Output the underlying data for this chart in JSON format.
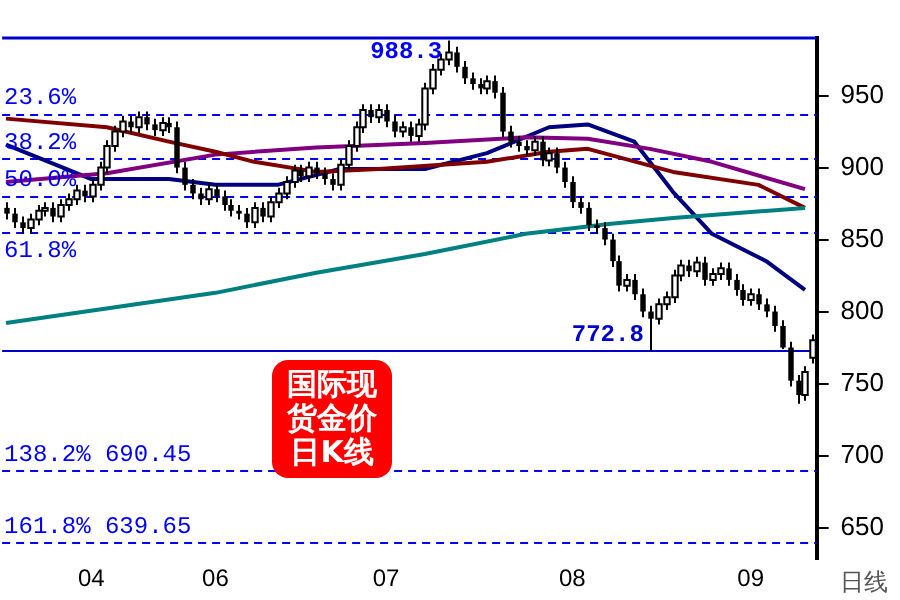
{
  "chart_data": {
    "type": "candlestick",
    "title": "国际现货金价日K线",
    "xlabel": "日线",
    "categories": [
      null,
      null,
      null,
      null,
      null,
      null,
      null,
      null,
      null,
      null,
      null,
      "04",
      null,
      null,
      null,
      null,
      null,
      null,
      null,
      null,
      null,
      null,
      null,
      null,
      null,
      null,
      null,
      "06",
      null,
      null,
      null,
      null,
      null,
      null,
      null,
      null,
      null,
      null,
      null,
      null,
      null,
      null,
      null,
      null,
      null,
      null,
      null,
      null,
      null,
      "07",
      null,
      null,
      null,
      null,
      null,
      null,
      null,
      null,
      null,
      null,
      null,
      null,
      null,
      null,
      null,
      null,
      null,
      null,
      null,
      null,
      null,
      null,
      null,
      "08",
      null,
      null,
      null,
      null,
      null,
      null,
      null,
      null,
      null,
      null,
      null,
      null,
      null,
      null,
      null,
      null,
      null,
      null,
      null,
      null,
      null,
      null,
      "09",
      null,
      null,
      null,
      null,
      null,
      null,
      null,
      null
    ],
    "ohlc": [
      [
        872,
        876,
        864,
        868
      ],
      [
        868,
        872,
        858,
        862
      ],
      [
        862,
        866,
        854,
        858
      ],
      [
        858,
        868,
        854,
        864
      ],
      [
        864,
        874,
        860,
        870
      ],
      [
        870,
        876,
        866,
        872
      ],
      [
        872,
        876,
        862,
        866
      ],
      [
        866,
        878,
        862,
        874
      ],
      [
        874,
        882,
        870,
        878
      ],
      [
        878,
        888,
        874,
        884
      ],
      [
        884,
        888,
        876,
        880
      ],
      [
        880,
        892,
        876,
        888
      ],
      [
        888,
        904,
        884,
        900
      ],
      [
        900,
        919,
        896,
        915
      ],
      [
        915,
        929,
        911,
        925
      ],
      [
        925,
        936,
        921,
        932
      ],
      [
        932,
        936,
        924,
        928
      ],
      [
        928,
        939,
        924,
        935
      ],
      [
        935,
        939,
        926,
        930
      ],
      [
        930,
        934,
        922,
        926
      ],
      [
        926,
        935,
        922,
        931
      ],
      [
        931,
        935,
        924,
        928
      ],
      [
        928,
        932,
        896,
        900
      ],
      [
        900,
        904,
        884,
        888
      ],
      [
        888,
        892,
        878,
        882
      ],
      [
        882,
        886,
        874,
        878
      ],
      [
        878,
        889,
        874,
        885
      ],
      [
        885,
        889,
        876,
        880
      ],
      [
        880,
        884,
        870,
        874
      ],
      [
        874,
        878,
        866,
        870
      ],
      [
        870,
        874,
        864,
        868
      ],
      [
        868,
        872,
        858,
        862
      ],
      [
        862,
        876,
        858,
        872
      ],
      [
        872,
        876,
        862,
        866
      ],
      [
        866,
        880,
        862,
        876
      ],
      [
        876,
        886,
        872,
        882
      ],
      [
        882,
        894,
        878,
        890
      ],
      [
        890,
        902,
        886,
        898
      ],
      [
        898,
        902,
        890,
        894
      ],
      [
        894,
        904,
        890,
        900
      ],
      [
        900,
        904,
        892,
        896
      ],
      [
        896,
        900,
        888,
        892
      ],
      [
        892,
        896,
        884,
        888
      ],
      [
        888,
        906,
        884,
        902
      ],
      [
        902,
        919,
        898,
        915
      ],
      [
        915,
        932,
        911,
        928
      ],
      [
        928,
        944,
        924,
        940
      ],
      [
        940,
        944,
        931,
        935
      ],
      [
        935,
        944,
        931,
        940
      ],
      [
        940,
        944,
        928,
        932
      ],
      [
        932,
        936,
        921,
        925
      ],
      [
        925,
        932,
        921,
        928
      ],
      [
        928,
        932,
        918,
        922
      ],
      [
        922,
        934,
        918,
        930
      ],
      [
        930,
        959,
        926,
        955
      ],
      [
        955,
        972,
        951,
        968
      ],
      [
        968,
        979,
        964,
        975
      ],
      [
        975,
        988.3,
        971,
        980
      ],
      [
        980,
        984,
        966,
        970
      ],
      [
        970,
        974,
        958,
        962
      ],
      [
        962,
        966,
        954,
        958
      ],
      [
        958,
        962,
        951,
        955
      ],
      [
        955,
        964,
        951,
        960
      ],
      [
        960,
        964,
        948,
        952
      ],
      [
        952,
        956,
        921,
        925
      ],
      [
        925,
        929,
        914,
        918
      ],
      [
        918,
        922,
        911,
        915
      ],
      [
        915,
        919,
        908,
        912
      ],
      [
        912,
        922,
        908,
        918
      ],
      [
        918,
        922,
        901,
        905
      ],
      [
        905,
        914,
        901,
        910
      ],
      [
        910,
        914,
        896,
        900
      ],
      [
        900,
        904,
        886,
        890
      ],
      [
        890,
        894,
        872,
        876
      ],
      [
        876,
        880,
        868,
        872
      ],
      [
        872,
        876,
        856,
        860
      ],
      [
        860,
        864,
        854,
        858
      ],
      [
        858,
        862,
        846,
        850
      ],
      [
        850,
        854,
        831,
        835
      ],
      [
        835,
        839,
        814,
        818
      ],
      [
        818,
        826,
        814,
        822
      ],
      [
        822,
        826,
        808,
        812
      ],
      [
        812,
        816,
        796,
        800
      ],
      [
        800,
        804,
        772.8,
        795
      ],
      [
        795,
        809,
        791,
        805
      ],
      [
        805,
        814,
        801,
        810
      ],
      [
        810,
        829,
        806,
        825
      ],
      [
        825,
        836,
        821,
        832
      ],
      [
        832,
        836,
        824,
        828
      ],
      [
        828,
        838,
        824,
        834
      ],
      [
        834,
        838,
        818,
        822
      ],
      [
        822,
        830,
        818,
        826
      ],
      [
        826,
        834,
        822,
        830
      ],
      [
        830,
        834,
        818,
        822
      ],
      [
        822,
        826,
        811,
        815
      ],
      [
        815,
        819,
        804,
        808
      ],
      [
        808,
        816,
        804,
        812
      ],
      [
        812,
        816,
        801,
        805
      ],
      [
        805,
        809,
        796,
        800
      ],
      [
        800,
        804,
        786,
        790
      ],
      [
        790,
        794,
        774,
        775
      ],
      [
        775,
        779,
        748,
        752
      ],
      [
        752,
        756,
        736,
        742
      ],
      [
        742,
        762,
        738,
        758
      ],
      [
        768,
        784,
        764,
        780
      ]
    ],
    "series": [
      {
        "type": "line",
        "color": "#008080",
        "values": [
          792,
          null,
          null,
          null,
          null,
          null,
          null,
          null,
          null,
          null,
          null,
          null,
          null,
          null,
          null,
          null,
          null,
          null,
          null,
          null,
          null,
          null,
          null,
          null,
          null,
          null,
          null,
          813,
          null,
          null,
          null,
          null,
          null,
          null,
          null,
          null,
          null,
          null,
          null,
          null,
          827,
          null,
          null,
          null,
          null,
          null,
          null,
          null,
          null,
          null,
          null,
          null,
          null,
          null,
          840,
          null,
          null,
          null,
          null,
          null,
          null,
          null,
          null,
          null,
          null,
          null,
          null,
          854,
          null,
          null,
          null,
          null,
          null,
          null,
          null,
          null,
          null,
          null,
          861,
          null,
          null,
          null,
          null,
          null,
          null,
          null,
          865,
          null,
          null,
          null,
          null,
          null,
          null,
          null,
          null,
          null,
          null,
          null,
          null,
          null,
          null,
          null,
          null,
          872,
          null
        ]
      },
      {
        "type": "line",
        "color": "#800000",
        "values": [
          934,
          null,
          null,
          null,
          null,
          null,
          null,
          null,
          null,
          null,
          null,
          null,
          null,
          928,
          null,
          null,
          null,
          null,
          null,
          null,
          null,
          918,
          null,
          null,
          null,
          null,
          null,
          911,
          null,
          null,
          null,
          null,
          904,
          null,
          null,
          null,
          null,
          null,
          null,
          null,
          897,
          null,
          null,
          null,
          null,
          null,
          null,
          null,
          899,
          null,
          null,
          null,
          null,
          null,
          null,
          null,
          null,
          null,
          null,
          null,
          null,
          null,
          904,
          null,
          null,
          null,
          null,
          null,
          null,
          null,
          911,
          null,
          null,
          null,
          null,
          913,
          null,
          null,
          null,
          null,
          null,
          null,
          null,
          null,
          null,
          null,
          897,
          null,
          null,
          null,
          null,
          null,
          null,
          null,
          null,
          null,
          null,
          888,
          null,
          null,
          null,
          null,
          null,
          872,
          null
        ]
      },
      {
        "type": "line",
        "color": "#800080",
        "values": [
          890,
          null,
          null,
          null,
          null,
          null,
          null,
          null,
          null,
          null,
          null,
          null,
          null,
          896,
          null,
          null,
          null,
          null,
          null,
          null,
          null,
          null,
          null,
          null,
          null,
          null,
          null,
          909,
          null,
          null,
          null,
          null,
          null,
          null,
          null,
          null,
          null,
          null,
          null,
          null,
          914,
          null,
          null,
          null,
          null,
          null,
          null,
          null,
          null,
          null,
          null,
          null,
          null,
          null,
          917,
          null,
          null,
          null,
          null,
          null,
          null,
          null,
          null,
          null,
          null,
          null,
          null,
          921,
          null,
          null,
          null,
          null,
          null,
          null,
          null,
          920,
          null,
          null,
          null,
          null,
          null,
          null,
          null,
          913,
          null,
          null,
          null,
          null,
          null,
          null,
          null,
          904,
          null,
          null,
          null,
          null,
          null,
          null,
          null,
          null,
          null,
          null,
          null,
          885,
          null
        ]
      },
      {
        "type": "line",
        "color": "#000080",
        "values": [
          916,
          null,
          null,
          null,
          null,
          null,
          null,
          null,
          null,
          null,
          null,
          892,
          null,
          null,
          null,
          null,
          null,
          null,
          null,
          null,
          null,
          892,
          null,
          null,
          null,
          null,
          null,
          888,
          null,
          null,
          null,
          null,
          null,
          null,
          null,
          888,
          null,
          null,
          null,
          null,
          null,
          null,
          null,
          899,
          null,
          null,
          null,
          null,
          null,
          null,
          null,
          null,
          null,
          null,
          899,
          null,
          null,
          null,
          null,
          null,
          null,
          null,
          910,
          null,
          null,
          null,
          null,
          null,
          null,
          null,
          928,
          null,
          null,
          null,
          null,
          930,
          null,
          null,
          null,
          null,
          null,
          918,
          null,
          null,
          null,
          null,
          883,
          null,
          null,
          null,
          null,
          854,
          null,
          null,
          null,
          null,
          null,
          null,
          835,
          null,
          null,
          null,
          null,
          815,
          null
        ]
      }
    ],
    "ylim": [
      628,
      990
    ],
    "yticks": [
      650,
      700,
      750,
      800,
      850,
      900,
      950
    ],
    "ref_lines": [
      {
        "axis": "y",
        "value": 937.4,
        "color": "#0000ff",
        "line_style": "dashed"
      },
      {
        "axis": "y",
        "value": 906.0,
        "color": "#0000ff",
        "line_style": "dashed"
      },
      {
        "axis": "y",
        "value": 880.55,
        "color": "#0000ff",
        "line_style": "dashed"
      },
      {
        "axis": "y",
        "value": 855.1,
        "color": "#0000ff",
        "line_style": "dashed"
      },
      {
        "axis": "y",
        "value": 772.8,
        "label": "772.8",
        "color": "#0000cc",
        "line_style": "solid"
      },
      {
        "axis": "y",
        "value": 690.45,
        "label": "138.2% 690.45",
        "color": "#0000ff",
        "line_style": "dashed"
      },
      {
        "axis": "y",
        "value": 639.65,
        "label": "161.8% 639.65",
        "color": "#0000ff",
        "line_style": "dashed"
      }
    ],
    "annotations": [
      {
        "text": "23.6%",
        "y": 937.4
      },
      {
        "text": "38.2%",
        "y": 906.0
      },
      {
        "text": "50.0%",
        "y": 880.55
      },
      {
        "text": "61.8%",
        "y": 855.1
      },
      "988.3"
    ]
  }
}
